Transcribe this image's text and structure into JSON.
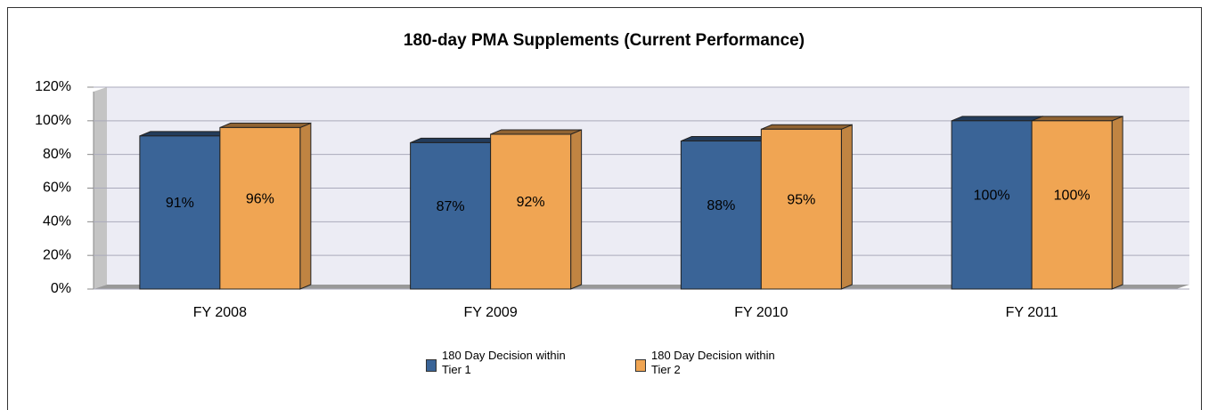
{
  "chart_data": {
    "type": "bar3d",
    "title": "180-day PMA Supplements (Current Performance)",
    "categories": [
      "FY 2008",
      "FY 2009",
      "FY 2010",
      "FY 2011"
    ],
    "series": [
      {
        "name": "180 Day Decision within Tier 1",
        "color": "#3a6497",
        "values": [
          91,
          87,
          88,
          100
        ],
        "value_labels": [
          "91%",
          "87%",
          "88%",
          "100%"
        ]
      },
      {
        "name": "180 Day Decision within Tier 2",
        "color": "#f0a553",
        "values": [
          96,
          92,
          95,
          100
        ],
        "value_labels": [
          "96%",
          "92%",
          "95%",
          "100%"
        ]
      }
    ],
    "ylim": [
      0,
      120
    ],
    "yticks": [
      {
        "value": 0,
        "label": "0%"
      },
      {
        "value": 20,
        "label": "20%"
      },
      {
        "value": 40,
        "label": "40%"
      },
      {
        "value": 60,
        "label": "60%"
      },
      {
        "value": 80,
        "label": "80%"
      },
      {
        "value": 100,
        "label": "100%"
      },
      {
        "value": 120,
        "label": "120%"
      }
    ],
    "grid": true,
    "legend": "bottom"
  }
}
